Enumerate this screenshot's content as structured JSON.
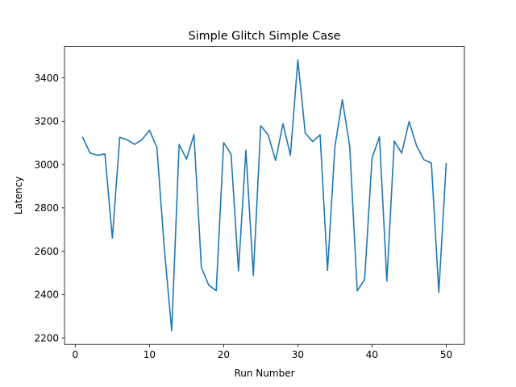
{
  "chart_data": {
    "type": "line",
    "title": "Simple Glitch Simple Case",
    "xlabel": "Run Number",
    "ylabel": "Latency",
    "xlim": [
      -1.45,
      52.45
    ],
    "ylim": [
      2170,
      3545
    ],
    "xticks": [
      0,
      10,
      20,
      30,
      40,
      50
    ],
    "yticks": [
      2200,
      2400,
      2600,
      2800,
      3000,
      3200,
      3400
    ],
    "grid": false,
    "series": [
      {
        "color": "#1f77b4",
        "x": [
          1,
          2,
          3,
          4,
          5,
          6,
          7,
          8,
          9,
          10,
          11,
          12,
          13,
          14,
          15,
          16,
          17,
          18,
          19,
          20,
          21,
          22,
          23,
          24,
          25,
          26,
          27,
          28,
          29,
          30,
          31,
          32,
          33,
          34,
          35,
          36,
          37,
          38,
          39,
          40,
          41,
          42,
          43,
          44,
          45,
          46,
          47,
          48,
          49,
          50
        ],
        "values": [
          3125,
          3053,
          3043,
          3049,
          2661,
          3126,
          3114,
          3093,
          3115,
          3158,
          3080,
          2614,
          2233,
          3093,
          3025,
          3138,
          2525,
          2443,
          2418,
          3101,
          3048,
          2510,
          3066,
          2488,
          3179,
          3137,
          3019,
          3188,
          3043,
          3483,
          3145,
          3106,
          3137,
          2512,
          3083,
          3299,
          3082,
          2417,
          2469,
          3029,
          3128,
          2463,
          3108,
          3053,
          3199,
          3087,
          3022,
          3007,
          2411,
          3005
        ]
      }
    ]
  }
}
